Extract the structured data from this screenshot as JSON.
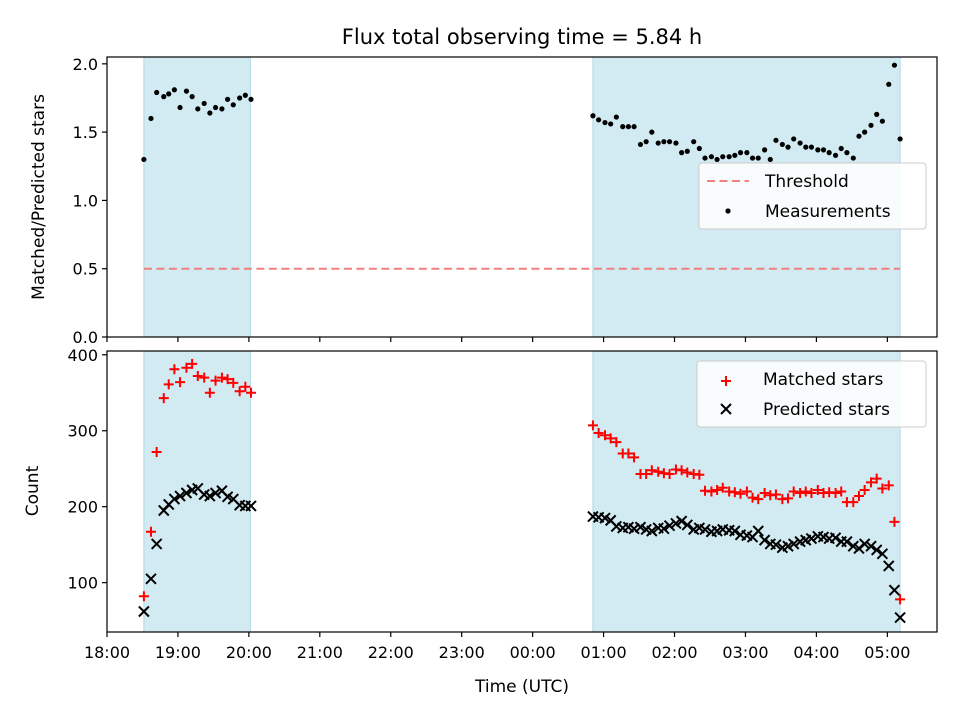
{
  "chart_data": {
    "title": "Flux total observing time = 5.84 h",
    "xlabel": "Time (UTC)",
    "x_ticks": [
      "18:00",
      "19:00",
      "20:00",
      "21:00",
      "22:00",
      "23:00",
      "00:00",
      "01:00",
      "02:00",
      "03:00",
      "04:00",
      "05:00"
    ],
    "x_range_hours": [
      18.0,
      29.7
    ],
    "observing_windows": [
      [
        18.52,
        20.02
      ],
      [
        24.85,
        29.18
      ]
    ],
    "colors": {
      "window": "#add8e6",
      "threshold": "#f08080",
      "measurement": "#000000",
      "matched": "#ff0000",
      "predicted": "#000000"
    },
    "panels": [
      {
        "type": "scatter",
        "ylabel": "Matched/Predicted stars",
        "ylim": [
          0,
          2.05
        ],
        "y_ticks": [
          "0.0",
          "0.5",
          "1.0",
          "1.5",
          "2.0"
        ],
        "y_tick_values": [
          0,
          0.5,
          1.0,
          1.5,
          2.0
        ],
        "threshold": 0.5,
        "legend": {
          "placement": "right",
          "entries": [
            "Threshold",
            "Measurements"
          ]
        },
        "series": [
          {
            "name": "Measurements",
            "points": [
              [
                18.52,
                1.3
              ],
              [
                18.62,
                1.6
              ],
              [
                18.7,
                1.79
              ],
              [
                18.8,
                1.76
              ],
              [
                18.87,
                1.78
              ],
              [
                18.95,
                1.81
              ],
              [
                19.03,
                1.68
              ],
              [
                19.12,
                1.8
              ],
              [
                19.2,
                1.76
              ],
              [
                19.28,
                1.67
              ],
              [
                19.37,
                1.71
              ],
              [
                19.45,
                1.64
              ],
              [
                19.53,
                1.68
              ],
              [
                19.62,
                1.67
              ],
              [
                19.7,
                1.74
              ],
              [
                19.78,
                1.7
              ],
              [
                19.87,
                1.75
              ],
              [
                19.95,
                1.77
              ],
              [
                20.03,
                1.74
              ],
              [
                24.85,
                1.62
              ],
              [
                24.93,
                1.59
              ],
              [
                25.02,
                1.57
              ],
              [
                25.1,
                1.56
              ],
              [
                25.18,
                1.61
              ],
              [
                25.27,
                1.54
              ],
              [
                25.35,
                1.54
              ],
              [
                25.43,
                1.54
              ],
              [
                25.52,
                1.41
              ],
              [
                25.6,
                1.43
              ],
              [
                25.68,
                1.5
              ],
              [
                25.77,
                1.42
              ],
              [
                25.85,
                1.43
              ],
              [
                25.93,
                1.43
              ],
              [
                26.02,
                1.42
              ],
              [
                26.1,
                1.35
              ],
              [
                26.18,
                1.36
              ],
              [
                26.27,
                1.43
              ],
              [
                26.35,
                1.38
              ],
              [
                26.43,
                1.31
              ],
              [
                26.52,
                1.32
              ],
              [
                26.6,
                1.3
              ],
              [
                26.68,
                1.32
              ],
              [
                26.77,
                1.32
              ],
              [
                26.85,
                1.33
              ],
              [
                26.93,
                1.35
              ],
              [
                27.02,
                1.35
              ],
              [
                27.1,
                1.31
              ],
              [
                27.18,
                1.31
              ],
              [
                27.27,
                1.37
              ],
              [
                27.35,
                1.3
              ],
              [
                27.43,
                1.44
              ],
              [
                27.52,
                1.41
              ],
              [
                27.6,
                1.39
              ],
              [
                27.68,
                1.45
              ],
              [
                27.77,
                1.42
              ],
              [
                27.85,
                1.39
              ],
              [
                27.93,
                1.39
              ],
              [
                28.02,
                1.37
              ],
              [
                28.1,
                1.37
              ],
              [
                28.18,
                1.35
              ],
              [
                28.27,
                1.33
              ],
              [
                28.35,
                1.38
              ],
              [
                28.43,
                1.35
              ],
              [
                28.52,
                1.31
              ],
              [
                28.6,
                1.47
              ],
              [
                28.68,
                1.5
              ],
              [
                28.77,
                1.55
              ],
              [
                28.85,
                1.63
              ],
              [
                28.93,
                1.58
              ],
              [
                29.02,
                1.85
              ],
              [
                29.1,
                1.99
              ],
              [
                29.18,
                1.45
              ]
            ]
          }
        ]
      },
      {
        "type": "scatter",
        "ylabel": "Count",
        "ylim": [
          35,
          405
        ],
        "y_ticks": [
          "100",
          "200",
          "300",
          "400"
        ],
        "y_tick_values": [
          100,
          200,
          300,
          400
        ],
        "legend": {
          "placement": "top-right",
          "entries": [
            "Matched stars",
            "Predicted stars"
          ]
        },
        "series": [
          {
            "name": "Matched stars",
            "marker": "plus",
            "points": [
              [
                18.52,
                82
              ],
              [
                18.62,
                167
              ],
              [
                18.7,
                272
              ],
              [
                18.8,
                343
              ],
              [
                18.87,
                361
              ],
              [
                18.95,
                381
              ],
              [
                19.03,
                364
              ],
              [
                19.12,
                383
              ],
              [
                19.2,
                388
              ],
              [
                19.28,
                372
              ],
              [
                19.37,
                370
              ],
              [
                19.45,
                350
              ],
              [
                19.53,
                366
              ],
              [
                19.62,
                370
              ],
              [
                19.7,
                368
              ],
              [
                19.78,
                363
              ],
              [
                19.87,
                352
              ],
              [
                19.95,
                358
              ],
              [
                20.03,
                350
              ],
              [
                24.85,
                307
              ],
              [
                24.93,
                297
              ],
              [
                25.02,
                294
              ],
              [
                25.1,
                290
              ],
              [
                25.18,
                285
              ],
              [
                25.27,
                270
              ],
              [
                25.35,
                270
              ],
              [
                25.43,
                265
              ],
              [
                25.52,
                243
              ],
              [
                25.6,
                243
              ],
              [
                25.68,
                248
              ],
              [
                25.77,
                246
              ],
              [
                25.85,
                244
              ],
              [
                25.93,
                243
              ],
              [
                26.02,
                249
              ],
              [
                26.1,
                248
              ],
              [
                26.18,
                245
              ],
              [
                26.27,
                243
              ],
              [
                26.35,
                242
              ],
              [
                26.43,
                221
              ],
              [
                26.52,
                220
              ],
              [
                26.6,
                222
              ],
              [
                26.68,
                225
              ],
              [
                26.77,
                220
              ],
              [
                26.85,
                219
              ],
              [
                26.93,
                217
              ],
              [
                27.02,
                220
              ],
              [
                27.1,
                212
              ],
              [
                27.18,
                210
              ],
              [
                27.27,
                218
              ],
              [
                27.35,
                215
              ],
              [
                27.43,
                216
              ],
              [
                27.52,
                210
              ],
              [
                27.6,
                211
              ],
              [
                27.68,
                220
              ],
              [
                27.77,
                218
              ],
              [
                27.85,
                220
              ],
              [
                27.93,
                218
              ],
              [
                28.02,
                222
              ],
              [
                28.1,
                218
              ],
              [
                28.18,
                219
              ],
              [
                28.27,
                218
              ],
              [
                28.35,
                220
              ],
              [
                28.43,
                206
              ],
              [
                28.52,
                206
              ],
              [
                28.6,
                214
              ],
              [
                28.68,
                222
              ],
              [
                28.77,
                232
              ],
              [
                28.85,
                237
              ],
              [
                28.93,
                224
              ],
              [
                29.02,
                228
              ],
              [
                29.1,
                180
              ],
              [
                29.18,
                78
              ]
            ]
          },
          {
            "name": "Predicted stars",
            "marker": "x",
            "points": [
              [
                18.52,
                62
              ],
              [
                18.62,
                105
              ],
              [
                18.7,
                151
              ],
              [
                18.8,
                195
              ],
              [
                18.87,
                203
              ],
              [
                18.95,
                210
              ],
              [
                19.03,
                214
              ],
              [
                19.12,
                218
              ],
              [
                19.2,
                222
              ],
              [
                19.28,
                224
              ],
              [
                19.37,
                216
              ],
              [
                19.45,
                214
              ],
              [
                19.53,
                218
              ],
              [
                19.62,
                221
              ],
              [
                19.7,
                213
              ],
              [
                19.78,
                210
              ],
              [
                19.87,
                202
              ],
              [
                19.95,
                201
              ],
              [
                20.03,
                201
              ],
              [
                24.85,
                187
              ],
              [
                24.93,
                186
              ],
              [
                25.02,
                185
              ],
              [
                25.1,
                182
              ],
              [
                25.18,
                174
              ],
              [
                25.27,
                172
              ],
              [
                25.35,
                173
              ],
              [
                25.43,
                171
              ],
              [
                25.52,
                173
              ],
              [
                25.6,
                170
              ],
              [
                25.68,
                168
              ],
              [
                25.77,
                172
              ],
              [
                25.85,
                171
              ],
              [
                25.93,
                175
              ],
              [
                26.02,
                178
              ],
              [
                26.1,
                181
              ],
              [
                26.18,
                176
              ],
              [
                26.27,
                170
              ],
              [
                26.35,
                172
              ],
              [
                26.43,
                170
              ],
              [
                26.52,
                167
              ],
              [
                26.6,
                168
              ],
              [
                26.68,
                170
              ],
              [
                26.77,
                169
              ],
              [
                26.85,
                168
              ],
              [
                26.93,
                163
              ],
              [
                27.02,
                162
              ],
              [
                27.1,
                160
              ],
              [
                27.18,
                168
              ],
              [
                27.27,
                156
              ],
              [
                27.35,
                151
              ],
              [
                27.43,
                150
              ],
              [
                27.52,
                146
              ],
              [
                27.6,
                148
              ],
              [
                27.68,
                151
              ],
              [
                27.77,
                154
              ],
              [
                27.85,
                156
              ],
              [
                27.93,
                158
              ],
              [
                28.02,
                161
              ],
              [
                28.1,
                160
              ],
              [
                28.18,
                158
              ],
              [
                28.27,
                159
              ],
              [
                28.35,
                154
              ],
              [
                28.43,
                154
              ],
              [
                28.52,
                148
              ],
              [
                28.6,
                145
              ],
              [
                28.68,
                151
              ],
              [
                28.77,
                148
              ],
              [
                28.85,
                143
              ],
              [
                28.93,
                138
              ],
              [
                29.02,
                122
              ],
              [
                29.1,
                90
              ],
              [
                29.18,
                54
              ]
            ]
          }
        ]
      }
    ]
  }
}
